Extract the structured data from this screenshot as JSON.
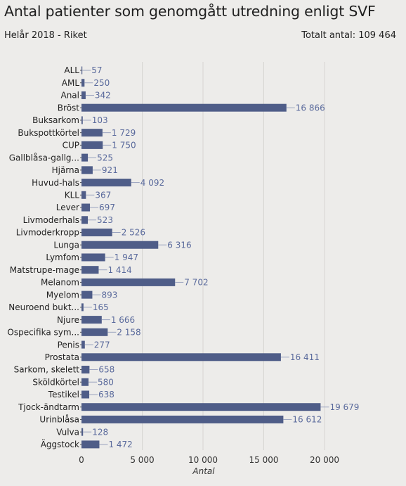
{
  "header": {
    "title": "Antal patienter som genomgått utredning enligt SVF",
    "subtitle": "Helår 2018 - Riket",
    "total": "Totalt antal: 109 464"
  },
  "colors": {
    "bar": "#4f5d88",
    "label": "#5a6a9c",
    "grid": "#d6d5d2",
    "background": "#edecea"
  },
  "chart_data": {
    "type": "bar",
    "orientation": "horizontal",
    "categories": [
      "ALL",
      "AML",
      "Anal",
      "Bröst",
      "Buksarkom",
      "Bukspottkörtel",
      "CUP",
      "Gallblåsa-gallg...",
      "Hjärna",
      "Huvud-hals",
      "KLL",
      "Lever",
      "Livmoderhals",
      "Livmoderkropp",
      "Lunga",
      "Lymfom",
      "Matstrupe-mage",
      "Melanom",
      "Myelom",
      "Neuroend bukt...",
      "Njure",
      "Ospecifika sym...",
      "Penis",
      "Prostata",
      "Sarkom, skelett",
      "Sköldkörtel",
      "Testikel",
      "Tjock-ändtarm",
      "Urinblåsa",
      "Vulva",
      "Äggstock"
    ],
    "values": [
      57,
      250,
      342,
      16866,
      103,
      1729,
      1750,
      525,
      921,
      4092,
      367,
      697,
      523,
      2526,
      6316,
      1947,
      1414,
      7702,
      893,
      165,
      1666,
      2158,
      277,
      16411,
      658,
      580,
      638,
      19679,
      16612,
      128,
      1472
    ],
    "value_labels": [
      "57",
      "250",
      "342",
      "16 866",
      "103",
      "1 729",
      "1 750",
      "525",
      "921",
      "4 092",
      "367",
      "697",
      "523",
      "2 526",
      "6 316",
      "1 947",
      "1 414",
      "7 702",
      "893",
      "165",
      "1 666",
      "2 158",
      "277",
      "16 411",
      "658",
      "580",
      "638",
      "19 679",
      "16 612",
      "128",
      "1 472"
    ],
    "xticks": [
      0,
      5000,
      10000,
      15000,
      20000
    ],
    "xtick_labels": [
      "0",
      "5 000",
      "10 000",
      "15 000",
      "20 000"
    ],
    "xlabel": "Antal",
    "xlim": [
      0,
      21500
    ],
    "grid": "vertical"
  }
}
